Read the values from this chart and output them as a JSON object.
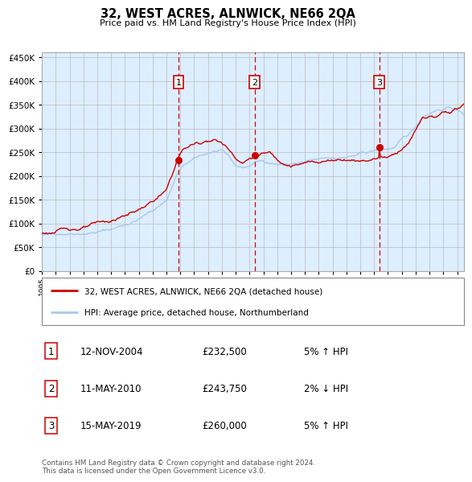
{
  "title": "32, WEST ACRES, ALNWICK, NE66 2QA",
  "subtitle": "Price paid vs. HM Land Registry's House Price Index (HPI)",
  "legend_line1": "32, WEST ACRES, ALNWICK, NE66 2QA (detached house)",
  "legend_line2": "HPI: Average price, detached house, Northumberland",
  "transactions": [
    {
      "num": 1,
      "date": "12-NOV-2004",
      "price": 232500,
      "pct": "5%",
      "dir": "↑"
    },
    {
      "num": 2,
      "date": "11-MAY-2010",
      "price": 243750,
      "pct": "2%",
      "dir": "↓"
    },
    {
      "num": 3,
      "date": "15-MAY-2019",
      "price": 260000,
      "pct": "5%",
      "dir": "↑"
    }
  ],
  "transaction_dates_decimal": [
    2004.87,
    2010.36,
    2019.37
  ],
  "transaction_prices": [
    232500,
    243750,
    260000
  ],
  "hpi_color": "#a8c8e8",
  "price_color": "#cc0000",
  "dot_color": "#cc0000",
  "vline_color": "#cc0000",
  "plot_bg": "#ddeeff",
  "ylim": [
    0,
    460000
  ],
  "yticks": [
    0,
    50000,
    100000,
    150000,
    200000,
    250000,
    300000,
    350000,
    400000,
    450000
  ],
  "xlim_start": 1995.0,
  "xlim_end": 2025.5,
  "footer": "Contains HM Land Registry data © Crown copyright and database right 2024.\nThis data is licensed under the Open Government Licence v3.0."
}
